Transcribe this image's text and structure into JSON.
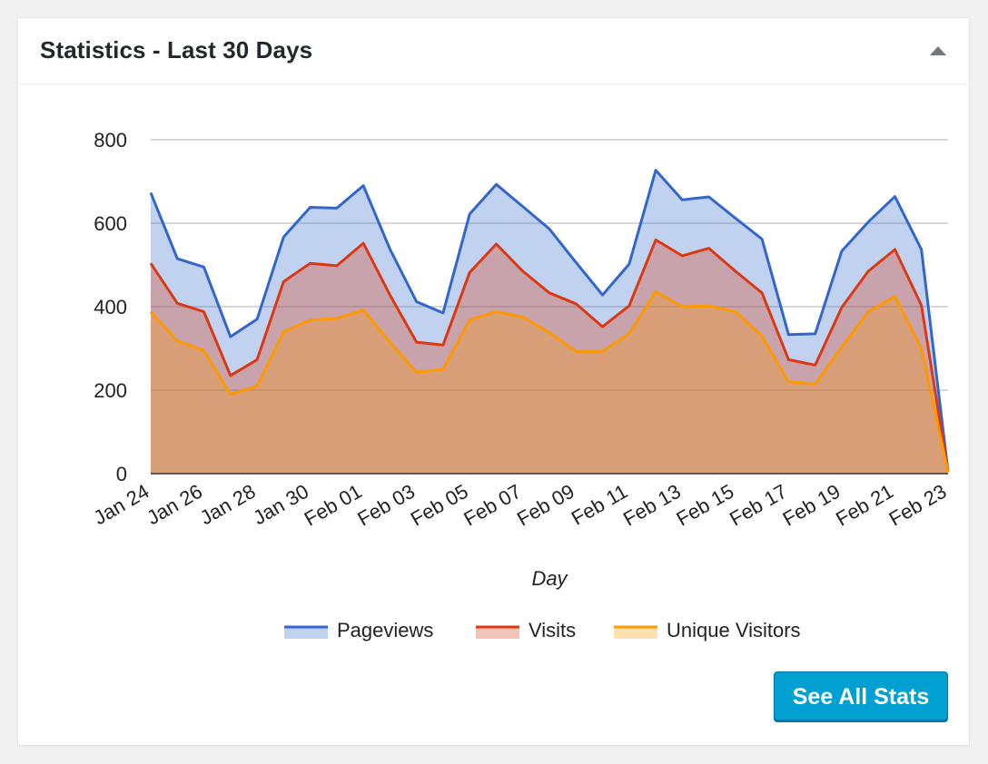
{
  "widget": {
    "title": "Statistics - Last 30 Days",
    "button_label": "See All Stats",
    "toggle_icon": "triangle-up-icon"
  },
  "colors": {
    "pageviews": "#3366cc",
    "visits": "#dc3912",
    "unique_visitors": "#ff9900",
    "button": "#00a0d2"
  },
  "chart_data": {
    "type": "area",
    "xlabel": "Day",
    "ylabel": "",
    "ylim": [
      0,
      800
    ],
    "yticks": [
      0,
      200,
      400,
      600,
      800
    ],
    "grid": true,
    "legend_position": "bottom",
    "x": [
      "Jan 24",
      "Jan 25",
      "Jan 26",
      "Jan 27",
      "Jan 28",
      "Jan 29",
      "Jan 30",
      "Jan 31",
      "Feb 01",
      "Feb 02",
      "Feb 03",
      "Feb 04",
      "Feb 05",
      "Feb 06",
      "Feb 07",
      "Feb 08",
      "Feb 09",
      "Feb 10",
      "Feb 11",
      "Feb 12",
      "Feb 13",
      "Feb 14",
      "Feb 15",
      "Feb 16",
      "Feb 17",
      "Feb 18",
      "Feb 19",
      "Feb 20",
      "Feb 21",
      "Feb 22",
      "Feb 23"
    ],
    "xtick_labels": [
      "Jan 24",
      "Jan 26",
      "Jan 28",
      "Jan 30",
      "Feb 01",
      "Feb 03",
      "Feb 05",
      "Feb 07",
      "Feb 09",
      "Feb 11",
      "Feb 13",
      "Feb 15",
      "Feb 17",
      "Feb 19",
      "Feb 21",
      "Feb 23"
    ],
    "series": [
      {
        "name": "Pageviews",
        "values": [
          673,
          515,
          495,
          328,
          370,
          567,
          638,
          636,
          690,
          538,
          412,
          385,
          622,
          693,
          640,
          586,
          506,
          428,
          502,
          727,
          656,
          663,
          612,
          562,
          333,
          335,
          533,
          603,
          664,
          537,
          5
        ]
      },
      {
        "name": "Visits",
        "values": [
          504,
          408,
          388,
          235,
          273,
          460,
          504,
          498,
          552,
          428,
          315,
          308,
          482,
          550,
          485,
          433,
          407,
          352,
          402,
          560,
          522,
          540,
          485,
          433,
          273,
          260,
          398,
          485,
          537,
          403,
          4
        ]
      },
      {
        "name": "Unique Visitors",
        "values": [
          388,
          318,
          295,
          190,
          210,
          340,
          368,
          372,
          392,
          315,
          243,
          250,
          368,
          388,
          375,
          338,
          293,
          293,
          335,
          436,
          400,
          402,
          388,
          330,
          220,
          215,
          303,
          388,
          425,
          300,
          3
        ]
      }
    ]
  }
}
